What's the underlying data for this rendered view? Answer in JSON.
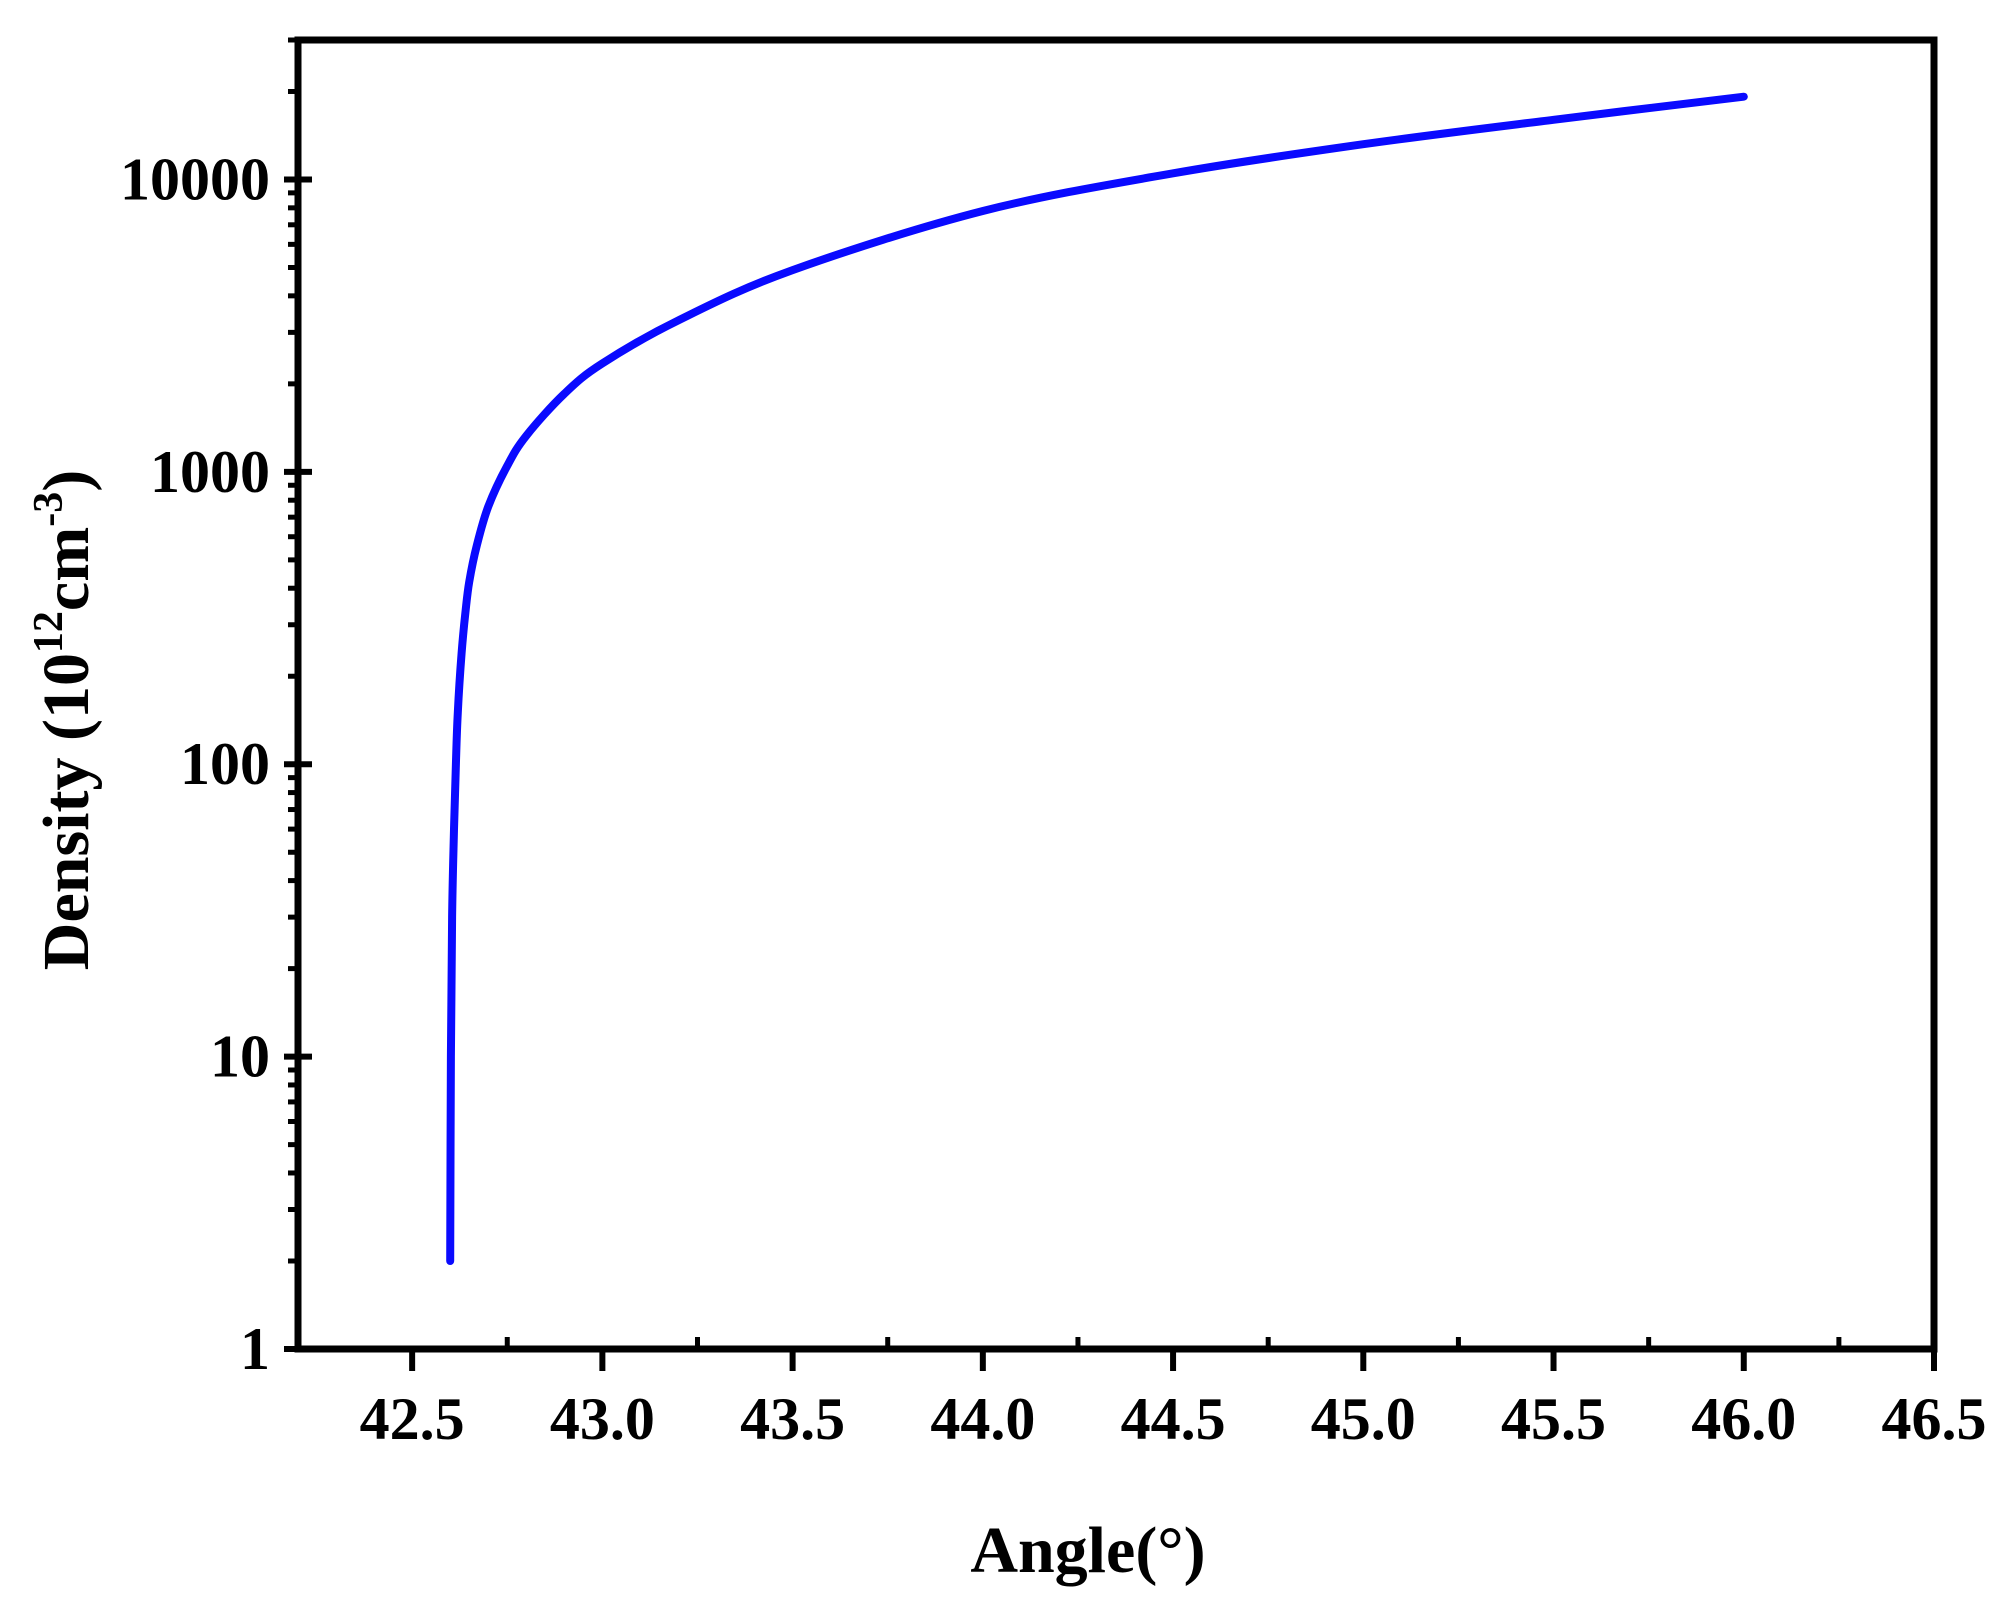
{
  "chart_data": {
    "type": "line",
    "xlabel": "Angle(°)",
    "ylabel": {
      "prefix": "Density (10",
      "sup1": "12",
      "mid": "cm",
      "sup2": "-3",
      "suffix": ")"
    },
    "xlim": [
      42.2,
      46.5
    ],
    "ylim": [
      1,
      30000
    ],
    "yscale": "log",
    "x_ticks": [
      42.5,
      43.0,
      43.5,
      44.0,
      44.5,
      45.0,
      45.5,
      46.0,
      46.5
    ],
    "x_tick_labels": [
      "42.5",
      "43.0",
      "43.5",
      "44.0",
      "44.5",
      "45.0",
      "45.5",
      "46.0",
      "46.5"
    ],
    "y_ticks": [
      1,
      10,
      100,
      1000,
      10000
    ],
    "y_tick_labels": [
      "1",
      "10",
      "100",
      "1000",
      "10000"
    ],
    "grid": false,
    "series": [
      {
        "color": "#0a0aff",
        "x": [
          42.6,
          42.602,
          42.605,
          42.61,
          42.615,
          42.62,
          42.63,
          42.64,
          42.65,
          42.67,
          42.7,
          42.75,
          42.8,
          42.9,
          43.0,
          43.2,
          43.5,
          44.0,
          44.5,
          45.0,
          45.5,
          46.0
        ],
        "y": [
          2,
          10,
          30,
          60,
          100,
          150,
          240,
          330,
          420,
          560,
          760,
          1050,
          1330,
          1850,
          2350,
          3300,
          4900,
          7800,
          10500,
          13200,
          16000,
          19200
        ]
      }
    ]
  }
}
